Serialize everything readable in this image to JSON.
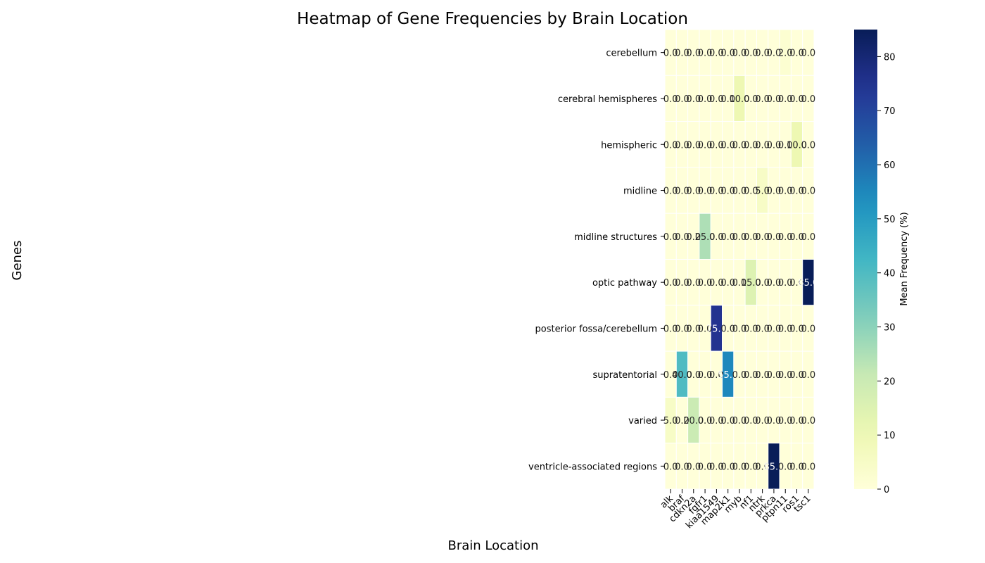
{
  "chart_data": {
    "type": "heatmap",
    "title": "Heatmap of Gene Frequencies by Brain Location",
    "xlabel": "Brain Location",
    "ylabel": "Genes",
    "colorbar_label": "Mean Frequency (%)",
    "colorbar_ticks": [
      0,
      10,
      20,
      30,
      40,
      50,
      60,
      70,
      80
    ],
    "vmin": 0,
    "vmax": 85,
    "colormap": "YlGnBu",
    "columns": [
      "alk",
      "braf",
      "cdkn2a",
      "fgfr1",
      "kiaa1549",
      "map2k1",
      "myb",
      "nf1",
      "ntrk",
      "prkca",
      "ptpn11",
      "ros1",
      "tsc1"
    ],
    "rows": [
      "cerebellum",
      "cerebral hemispheres",
      "hemispheric",
      "midline",
      "midline structures",
      "optic pathway",
      "posterior fossa/cerebellum",
      "supratentorial",
      "varied",
      "ventricle-associated regions"
    ],
    "values": [
      [
        0,
        0,
        0,
        0,
        0,
        0,
        0,
        0,
        0,
        0,
        2,
        0,
        0
      ],
      [
        0,
        0,
        0,
        0,
        0,
        0,
        10,
        0,
        0,
        0,
        0,
        0,
        0
      ],
      [
        0,
        0,
        0,
        0,
        0,
        0,
        0,
        0,
        0,
        0,
        0,
        10,
        0
      ],
      [
        0,
        0,
        0,
        0,
        0,
        0,
        0,
        0,
        5,
        0,
        0,
        0,
        0
      ],
      [
        0,
        0,
        0,
        25,
        0,
        0,
        0,
        0,
        0,
        0,
        0,
        0,
        0
      ],
      [
        0,
        0,
        0,
        0,
        0,
        0,
        0,
        15,
        0,
        0,
        0,
        0,
        85
      ],
      [
        0,
        0,
        0,
        0,
        75,
        0,
        0,
        0,
        0,
        0,
        0,
        0,
        0
      ],
      [
        0,
        40,
        0,
        0,
        0,
        55,
        0,
        0,
        0,
        0,
        0,
        0,
        0
      ],
      [
        5,
        0,
        20,
        0,
        0,
        0,
        0,
        0,
        0,
        0,
        0,
        0,
        0
      ],
      [
        0,
        0,
        0,
        0,
        0,
        0,
        0,
        0,
        0,
        85,
        0,
        0,
        0
      ]
    ],
    "value_format": "0.0",
    "grid": false
  }
}
